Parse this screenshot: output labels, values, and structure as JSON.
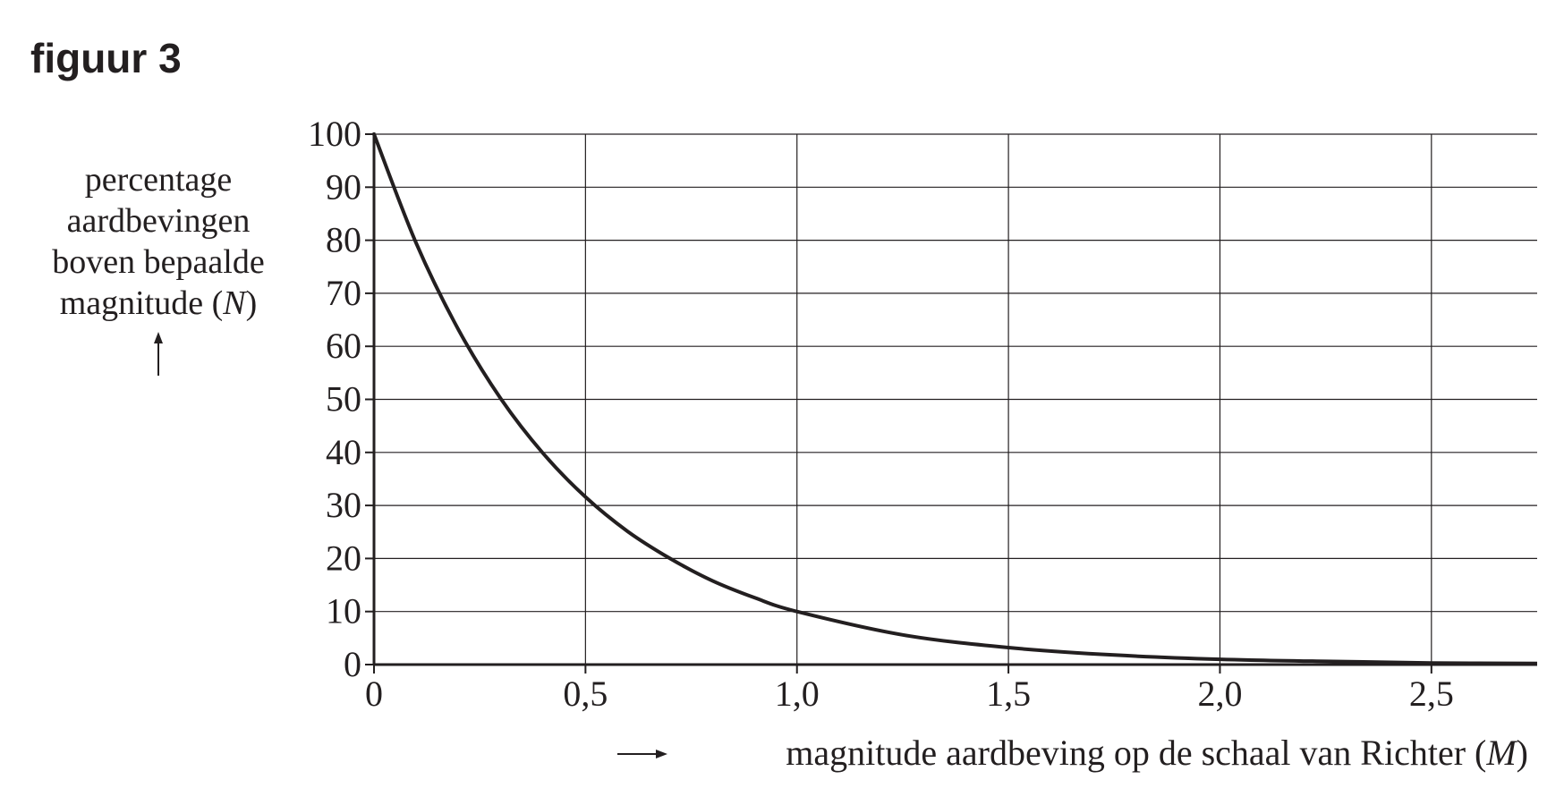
{
  "figure_label": "figuur 3",
  "chart_data": {
    "type": "line",
    "title": "",
    "ylabel_lines": [
      "percentage",
      "aardbevingen",
      "boven bepaalde",
      "magnitude ("
    ],
    "ylabel_var": "N",
    "ylabel_close": ")",
    "xlabel_text": "magnitude aardbeving op de schaal van Richter (",
    "xlabel_var": "M",
    "xlabel_close": ")",
    "xlim": [
      0,
      2.75
    ],
    "ylim": [
      0,
      100
    ],
    "x_ticks": [
      0,
      0.5,
      1.0,
      1.5,
      2.0,
      2.5
    ],
    "x_tick_labels": [
      "0",
      "0,5",
      "1,0",
      "1,5",
      "2,0",
      "2,5"
    ],
    "y_ticks": [
      0,
      10,
      20,
      30,
      40,
      50,
      60,
      70,
      80,
      90,
      100
    ],
    "y_tick_labels": [
      "0",
      "10",
      "20",
      "30",
      "40",
      "50",
      "60",
      "70",
      "80",
      "90",
      "100"
    ],
    "grid": true,
    "series": [
      {
        "x": [
          0,
          0.1,
          0.2,
          0.3,
          0.4,
          0.5,
          0.6,
          0.7,
          0.8,
          0.9,
          1.0,
          1.25,
          1.5,
          1.75,
          2.0,
          2.25,
          2.5,
          2.75
        ],
        "y": [
          100,
          79.4,
          63.1,
          50.1,
          39.8,
          31.6,
          25.1,
          20.0,
          15.8,
          12.6,
          10.0,
          5.6,
          3.2,
          1.8,
          1.0,
          0.6,
          0.3,
          0.2
        ]
      }
    ],
    "colors": {
      "ink": "#231f20",
      "grid": "#231f20"
    }
  }
}
